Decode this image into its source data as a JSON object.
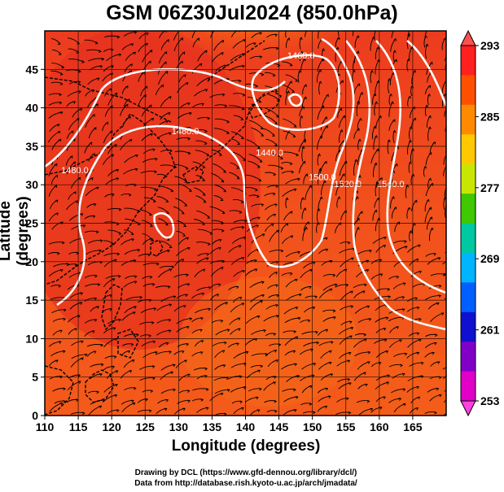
{
  "title": "GSM 06Z30Jul2024 (850.0hPa)",
  "xlabel": "Longitude (degrees)",
  "ylabel": "Latitude (degrees)",
  "credits": [
    "Drawing by DCL (https://www.gfd-dennou.org/library/dcl/)",
    "Data from http://database.rish.kyoto-u.ac.jp/arch/jmadata/"
  ],
  "map": {
    "lon_range": [
      110,
      170
    ],
    "lat_range": [
      0,
      50
    ],
    "lon_ticks": [
      110,
      115,
      120,
      125,
      130,
      135,
      140,
      145,
      150,
      155,
      160,
      165
    ],
    "lat_ticks": [
      0,
      5,
      10,
      15,
      20,
      25,
      30,
      35,
      40,
      45
    ],
    "grid": true,
    "grid_color": "#000000",
    "field_colors": [
      "#e8331f",
      "#f04a1c",
      "#f6661a",
      "#fa8a18",
      "#ffaa10",
      "#ffd000"
    ]
  },
  "colorbar": {
    "labels": [
      "293",
      "285",
      "277",
      "269",
      "261",
      "253"
    ],
    "colors": [
      "#ff2020",
      "#ff5000",
      "#ff8a00",
      "#ffc800",
      "#c8e600",
      "#40c800",
      "#00c8a0",
      "#00b4ff",
      "#0060ff",
      "#1010d0",
      "#8000c8",
      "#e000c8"
    ]
  },
  "contours": {
    "color": "#ffffff",
    "labels": [
      {
        "text": "1480.0",
        "lon": 131.0,
        "lat": 36.6
      },
      {
        "text": "1480.0",
        "lon": 114.5,
        "lat": 31.5
      },
      {
        "text": "1460.0",
        "lon": 148.3,
        "lat": 46.4
      },
      {
        "text": "1440.0",
        "lon": 143.6,
        "lat": 33.8
      },
      {
        "text": "1500.0",
        "lon": 151.5,
        "lat": 30.6
      },
      {
        "text": "1520.0",
        "lon": 155.3,
        "lat": 29.7
      },
      {
        "text": "1540.0",
        "lon": 161.7,
        "lat": 29.7
      }
    ]
  }
}
